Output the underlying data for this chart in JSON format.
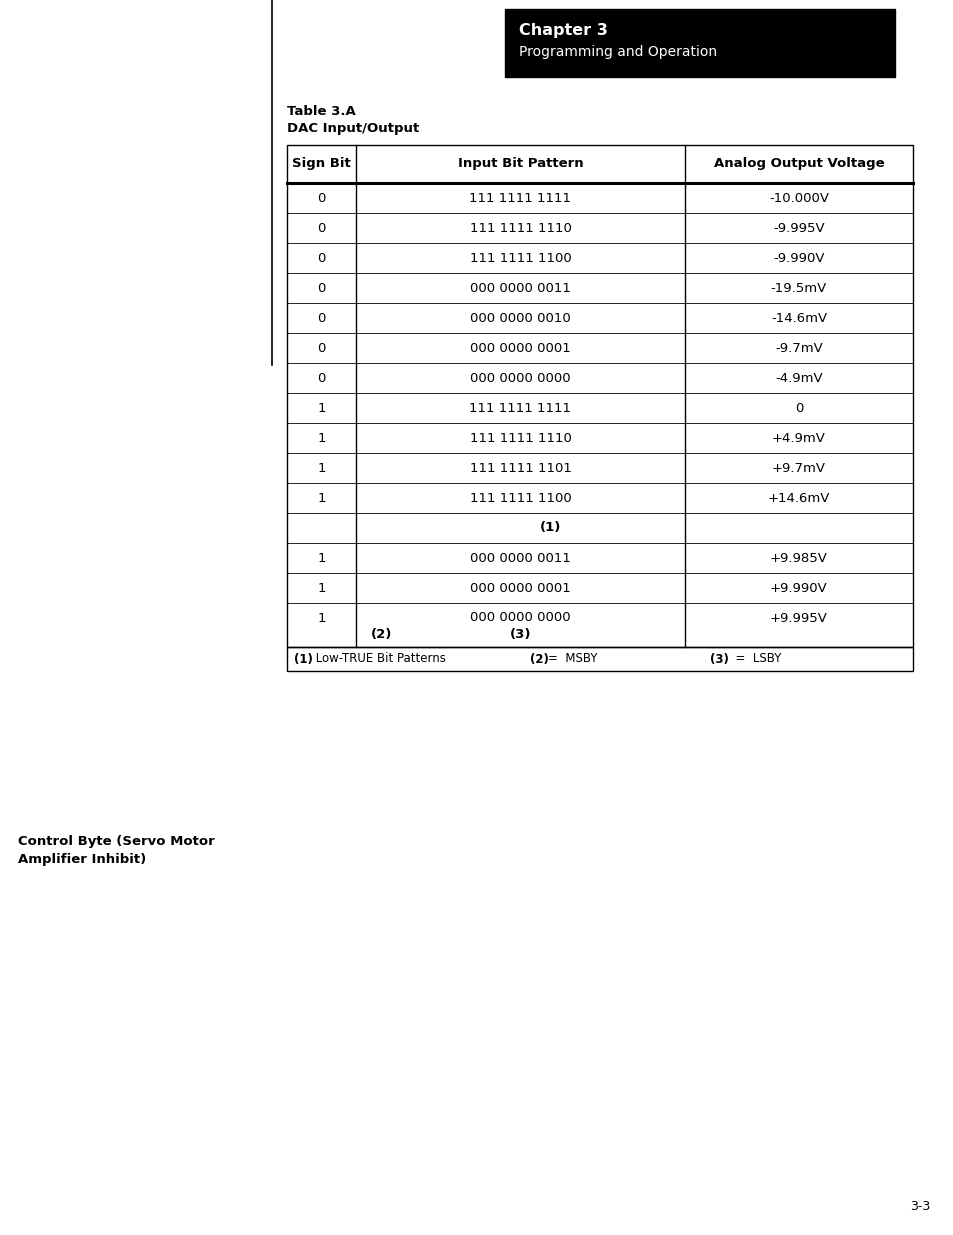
{
  "page_bg": "#ffffff",
  "chapter_title": "Chapter 3",
  "chapter_subtitle": "Programming and Operation",
  "table_title_line1": "Table 3.A",
  "table_title_line2": "DAC Input/Output",
  "col_headers": [
    "Sign Bit",
    "Input Bit Pattern",
    "Analog Output Voltage"
  ],
  "rows": [
    [
      "0",
      "111 1111 1111",
      "-10.000V"
    ],
    [
      "0",
      "111 1111 1110",
      "-9.995V"
    ],
    [
      "0",
      "111 1111 1100",
      "-9.990V"
    ],
    [
      "0",
      "000 0000 0011",
      "-19.5mV"
    ],
    [
      "0",
      "000 0000 0010",
      "-14.6mV"
    ],
    [
      "0",
      "000 0000 0001",
      "-9.7mV"
    ],
    [
      "0",
      "000 0000 0000",
      "-4.9mV"
    ],
    [
      "1",
      "111 1111 1111",
      "0"
    ],
    [
      "1",
      "111 1111 1110",
      "+4.9mV"
    ],
    [
      "1",
      "111 1111 1101",
      "+9.7mV"
    ],
    [
      "1",
      "111 1111 1100",
      "+14.6mV"
    ],
    [
      "",
      "",
      ""
    ],
    [
      "1",
      "000 0000 0011",
      "+9.985V"
    ],
    [
      "1",
      "000 0000 0001",
      "+9.990V"
    ],
    [
      "1",
      "000 0000 0000",
      "+9.995V"
    ]
  ],
  "special_row_11_center": "(1)",
  "special_row_14_col1": "(2)",
  "special_row_14_col2": "(3)",
  "footer_col1_bold": "(1)",
  "footer_col1_rest": " Low-TRUE Bit Patterns",
  "footer_col2_bold": "(2)",
  "footer_col2_rest": "=  MSBY",
  "footer_col3_bold": "(3)",
  "footer_col3_rest": "  =  LSBY",
  "sidebar_line1": "Control Byte (Servo Motor",
  "sidebar_line2": "Amplifier Inhibit)",
  "page_number": "3-3"
}
